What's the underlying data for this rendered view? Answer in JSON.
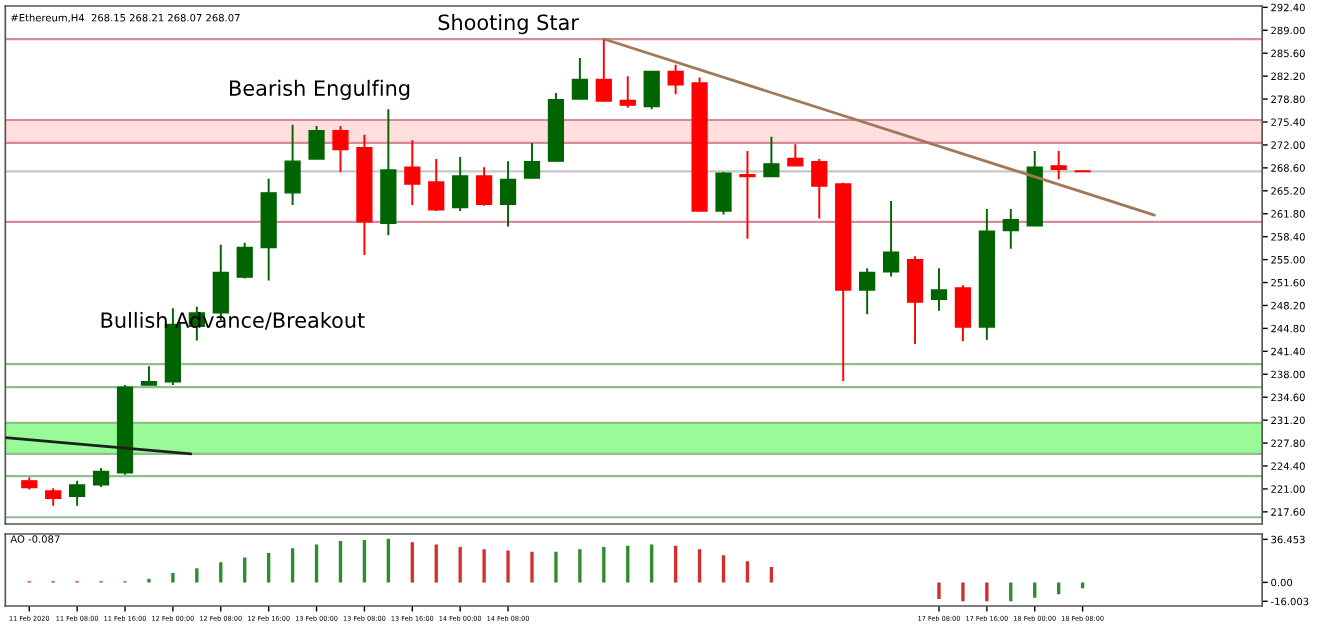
{
  "chart_data": [
    {
      "type": "candlestick",
      "title": "#Ethereum,H4  268.15 268.21 268.07 268.07",
      "tick_labels": "y",
      "legend": false,
      "grid": false,
      "x": [
        "2020-02-11T00:00",
        "2020-02-11T04:00",
        "2020-02-11T08:00",
        "2020-02-11T12:00",
        "2020-02-11T16:00",
        "2020-02-11T20:00",
        "2020-02-12T00:00",
        "2020-02-12T04:00",
        "2020-02-12T08:00",
        "2020-02-12T12:00",
        "2020-02-12T16:00",
        "2020-02-12T20:00",
        "2020-02-13T00:00",
        "2020-02-13T04:00",
        "2020-02-13T08:00",
        "2020-02-13T12:00",
        "2020-02-13T16:00",
        "2020-02-13T20:00",
        "2020-02-14T00:00",
        "2020-02-14T04:00",
        "2020-02-14T08:00",
        "2020-02-14T12:00",
        "2020-02-14T16:00",
        "2020-02-14T20:00",
        "2020-02-15T00:00",
        "2020-02-15T04:00",
        "2020-02-15T08:00",
        "2020-02-15T12:00",
        "2020-02-15T16:00",
        "2020-02-15T20:00",
        "2020-02-16T00:00",
        "2020-02-16T04:00",
        "2020-02-16T08:00",
        "2020-02-16T12:00",
        "2020-02-16T16:00",
        "2020-02-16T20:00",
        "2020-02-17T00:00",
        "2020-02-17T04:00",
        "2020-02-17T08:00",
        "2020-02-17T12:00",
        "2020-02-17T16:00",
        "2020-02-17T20:00",
        "2020-02-18T00:00",
        "2020-02-18T04:00",
        "2020-02-18T08:00"
      ],
      "ohlc": [
        [
          222.2,
          222.7,
          220.9,
          221.2
        ],
        [
          220.7,
          221.1,
          218.5,
          219.6
        ],
        [
          219.9,
          222.2,
          218.5,
          221.6
        ],
        [
          221.6,
          224.1,
          221.3,
          223.6
        ],
        [
          223.4,
          236.4,
          223.1,
          236.1
        ],
        [
          236.4,
          239.2,
          236.4,
          236.9
        ],
        [
          236.9,
          247.8,
          236.4,
          245.4
        ],
        [
          245.1,
          248.0,
          243.0,
          247.1
        ],
        [
          247.1,
          257.2,
          246.0,
          253.1
        ],
        [
          252.4,
          257.5,
          252.2,
          256.8
        ],
        [
          256.8,
          267.0,
          251.9,
          264.9
        ],
        [
          264.9,
          275.0,
          263.1,
          269.6
        ],
        [
          269.9,
          274.8,
          269.9,
          274.1
        ],
        [
          274.1,
          274.8,
          268.0,
          271.3
        ],
        [
          271.6,
          273.5,
          255.7,
          260.6
        ],
        [
          260.4,
          277.3,
          258.6,
          268.3
        ],
        [
          268.7,
          272.7,
          263.1,
          266.2
        ],
        [
          266.5,
          269.9,
          262.2,
          262.4
        ],
        [
          262.7,
          270.2,
          262.2,
          267.4
        ],
        [
          267.4,
          268.7,
          263.0,
          263.2
        ],
        [
          263.2,
          269.6,
          259.9,
          266.9
        ],
        [
          267.1,
          272.3,
          267.1,
          269.5
        ],
        [
          269.6,
          279.7,
          269.6,
          278.7
        ],
        [
          278.8,
          284.9,
          278.8,
          281.7
        ],
        [
          281.7,
          287.7,
          278.4,
          278.5
        ],
        [
          278.6,
          282.2,
          277.5,
          277.9
        ],
        [
          277.7,
          282.9,
          277.3,
          282.9
        ],
        [
          282.9,
          283.9,
          279.5,
          280.9
        ],
        [
          281.2,
          282.0,
          262.2,
          262.2
        ],
        [
          262.2,
          268.0,
          261.7,
          267.8
        ],
        [
          267.6,
          271.1,
          258.1,
          267.3
        ],
        [
          267.3,
          273.2,
          267.3,
          269.2
        ],
        [
          270.0,
          272.1,
          268.9,
          268.9
        ],
        [
          269.5,
          269.9,
          261.1,
          265.9
        ],
        [
          266.2,
          266.4,
          237.0,
          250.5
        ],
        [
          250.5,
          253.7,
          246.9,
          253.1
        ],
        [
          253.2,
          263.7,
          252.5,
          256.1
        ],
        [
          255.0,
          255.5,
          242.5,
          248.7
        ],
        [
          249.1,
          253.7,
          247.4,
          250.5
        ],
        [
          250.8,
          251.2,
          242.9,
          245.0
        ],
        [
          245.0,
          262.5,
          243.1,
          259.2
        ],
        [
          259.3,
          262.5,
          256.6,
          260.9
        ],
        [
          260.0,
          271.1,
          260.0,
          268.7
        ],
        [
          268.9,
          271.1,
          266.9,
          268.4
        ],
        [
          268.15,
          268.21,
          268.07,
          268.07
        ]
      ],
      "colors": [
        "#ff0000",
        "#ff0000",
        "#006400",
        "#006400",
        "#006400",
        "#006400",
        "#006400",
        "#006400",
        "#006400",
        "#006400",
        "#006400",
        "#006400",
        "#006400",
        "#ff0000",
        "#ff0000",
        "#006400",
        "#ff0000",
        "#ff0000",
        "#006400",
        "#ff0000",
        "#006400",
        "#006400",
        "#006400",
        "#006400",
        "#ff0000",
        "#ff0000",
        "#006400",
        "#ff0000",
        "#ff0000",
        "#006400",
        "#ff0000",
        "#006400",
        "#ff0000",
        "#ff0000",
        "#ff0000",
        "#006400",
        "#006400",
        "#ff0000",
        "#006400",
        "#ff0000",
        "#006400",
        "#006400",
        "#006400",
        "#ff0000",
        "#ff0000"
      ],
      "xlim": [
        "2020-02-10T20:00",
        "2020-02-19T14:00"
      ],
      "ylim": [
        215.8,
        292.6
      ],
      "yticks": [
        {
          "value": 292.4,
          "label": "292.40"
        },
        {
          "value": 289.0,
          "label": "289.00"
        },
        {
          "value": 285.6,
          "label": "285.60"
        },
        {
          "value": 282.2,
          "label": "282.20"
        },
        {
          "value": 278.8,
          "label": "278.80"
        },
        {
          "value": 275.4,
          "label": "275.40"
        },
        {
          "value": 272.0,
          "label": "272.00"
        },
        {
          "value": 268.6,
          "label": "268.60"
        },
        {
          "value": 265.2,
          "label": "265.20"
        },
        {
          "value": 261.8,
          "label": "261.80"
        },
        {
          "value": 258.4,
          "label": "258.40"
        },
        {
          "value": 255.0,
          "label": "255.00"
        },
        {
          "value": 251.6,
          "label": "251.60"
        },
        {
          "value": 248.2,
          "label": "248.20"
        },
        {
          "value": 244.8,
          "label": "244.80"
        },
        {
          "value": 241.4,
          "label": "241.40"
        },
        {
          "value": 238.0,
          "label": "238.00"
        },
        {
          "value": 234.6,
          "label": "234.60"
        },
        {
          "value": 231.2,
          "label": "231.20"
        },
        {
          "value": 227.8,
          "label": "227.80"
        },
        {
          "value": 224.4,
          "label": "224.40"
        },
        {
          "value": 221.0,
          "label": "221.00"
        },
        {
          "value": 217.6,
          "label": "217.60"
        }
      ],
      "bands": [
        {
          "axis": "y",
          "from": 272.3,
          "to": 275.7,
          "color": "#ffdede"
        },
        {
          "axis": "y",
          "from": 226.2,
          "to": 230.8,
          "color": "#98fb98"
        }
      ],
      "ref_lines": [
        {
          "axis": "y",
          "value": 287.7,
          "color": "#d98a9a"
        },
        {
          "axis": "y",
          "value": 275.7,
          "color": "#d98a9a"
        },
        {
          "axis": "y",
          "value": 272.3,
          "color": "#d98a9a"
        },
        {
          "axis": "y",
          "value": 268.07,
          "color": "#c8c8c8"
        },
        {
          "axis": "y",
          "value": 260.6,
          "color": "#d98a9a"
        },
        {
          "axis": "y",
          "value": 239.5,
          "color": "#8fbf8f"
        },
        {
          "axis": "y",
          "value": 236.1,
          "color": "#8fbf8f"
        },
        {
          "axis": "y",
          "value": 230.8,
          "color": "#8fbf8f"
        },
        {
          "axis": "y",
          "value": 226.2,
          "color": "#8fbf8f"
        },
        {
          "axis": "y",
          "value": 222.9,
          "color": "#8fbf8f"
        },
        {
          "axis": "y",
          "value": 216.8,
          "color": "#8fbf8f"
        }
      ],
      "series": [
        {
          "type": "line",
          "color": "#a0785a",
          "x": [
            "2020-02-15T00:00",
            "2020-02-18T20:00"
          ],
          "values": [
            287.7,
            261.6
          ]
        },
        {
          "type": "line",
          "color": "#202020",
          "x": [
            "2020-02-10T20:00",
            "2020-02-12T03:00"
          ],
          "values": [
            228.6,
            226.2
          ]
        }
      ],
      "annotations": [
        "Shooting Star",
        "Bearish Engulfing",
        "Bullish Advance/Breakout"
      ]
    },
    {
      "type": "bar",
      "title": "AO -0.087",
      "legend": false,
      "grid": false,
      "x": [
        "2020-02-11T00:00",
        "2020-02-11T04:00",
        "2020-02-11T08:00",
        "2020-02-11T12:00",
        "2020-02-11T16:00",
        "2020-02-11T20:00",
        "2020-02-12T00:00",
        "2020-02-12T04:00",
        "2020-02-12T08:00",
        "2020-02-12T12:00",
        "2020-02-12T16:00",
        "2020-02-12T20:00",
        "2020-02-13T00:00",
        "2020-02-13T04:00",
        "2020-02-13T08:00",
        "2020-02-13T12:00",
        "2020-02-13T16:00",
        "2020-02-13T20:00",
        "2020-02-14T00:00",
        "2020-02-14T04:00",
        "2020-02-14T08:00",
        "2020-02-14T12:00",
        "2020-02-14T16:00",
        "2020-02-14T20:00",
        "2020-02-15T00:00",
        "2020-02-15T04:00",
        "2020-02-15T08:00",
        "2020-02-15T12:00",
        "2020-02-15T16:00",
        "2020-02-15T20:00",
        "2020-02-16T00:00",
        "2020-02-16T04:00",
        "2020-02-16T08:00",
        "2020-02-16T12:00",
        "2020-02-16T16:00",
        "2020-02-16T20:00",
        "2020-02-17T00:00",
        "2020-02-17T04:00",
        "2020-02-17T08:00",
        "2020-02-17T12:00",
        "2020-02-17T16:00",
        "2020-02-17T20:00",
        "2020-02-18T00:00",
        "2020-02-18T04:00",
        "2020-02-18T08:00"
      ],
      "values": [
        1,
        1,
        1,
        1,
        1,
        3,
        8,
        12,
        17,
        21,
        25,
        29,
        32,
        35,
        36,
        37,
        34,
        32,
        30,
        28,
        27,
        26,
        26,
        28,
        30,
        31,
        32,
        31,
        28,
        23,
        18,
        13,
        null,
        null,
        null,
        null,
        null,
        null,
        -14,
        -16,
        -16,
        -16,
        -13,
        -10,
        -5
      ],
      "colors": [
        "#d03030",
        "#d03030",
        "#d03030",
        "#d03030",
        "#2e8b2e",
        "#2e8b2e",
        "#2e8b2e",
        "#2e8b2e",
        "#2e8b2e",
        "#2e8b2e",
        "#2e8b2e",
        "#2e8b2e",
        "#2e8b2e",
        "#2e8b2e",
        "#2e8b2e",
        "#2e8b2e",
        "#d03030",
        "#d03030",
        "#d03030",
        "#d03030",
        "#d03030",
        "#d03030",
        "#2e8b2e",
        "#2e8b2e",
        "#2e8b2e",
        "#2e8b2e",
        "#2e8b2e",
        "#d03030",
        "#d03030",
        "#d03030",
        "#d03030",
        "#d03030",
        "#d03030",
        "#d03030",
        "#d03030",
        "#d03030",
        "#d03030",
        "#d03030",
        "#d03030",
        "#d03030",
        "#d03030",
        "#2e8b2e",
        "#2e8b2e",
        "#2e8b2e",
        "#2e8b2e"
      ],
      "xlim": [
        "2020-02-10T20:00",
        "2020-02-19T14:00"
      ],
      "ylim": [
        -20,
        41
      ],
      "yticks": [
        36.453,
        {
          "value": 0,
          "label": "0.00"
        },
        -16.003
      ],
      "xticks": [
        {
          "value": "2020-02-11T00:00",
          "label": "11 Feb 2020"
        },
        {
          "value": "2020-02-11T08:00",
          "label": "11 Feb 08:00"
        },
        {
          "value": "2020-02-11T16:00",
          "label": "11 Feb 16:00"
        },
        {
          "value": "2020-02-12T00:00",
          "label": "12 Feb 00:00"
        },
        {
          "value": "2020-02-12T08:00",
          "label": "12 Feb 08:00"
        },
        {
          "value": "2020-02-12T16:00",
          "label": "12 Feb 16:00"
        },
        {
          "value": "2020-02-13T00:00",
          "label": "13 Feb 00:00"
        },
        {
          "value": "2020-02-13T08:00",
          "label": "13 Feb 08:00"
        },
        {
          "value": "2020-02-13T16:00",
          "label": "13 Feb 16:00"
        },
        {
          "value": "2020-02-14T00:00",
          "label": "14 Feb 00:00"
        },
        {
          "value": "2020-02-14T08:00",
          "label": "14 Feb 08:00"
        },
        {
          "value": "2020-02-17T08:00",
          "label": "17 Feb 08:00"
        },
        {
          "value": "2020-02-17T16:00",
          "label": "17 Feb 16:00"
        },
        {
          "value": "2020-02-18T00:00",
          "label": "18 Feb 00:00"
        },
        {
          "value": "2020-02-18T08:00",
          "label": "18 Feb 08:00"
        }
      ]
    }
  ]
}
